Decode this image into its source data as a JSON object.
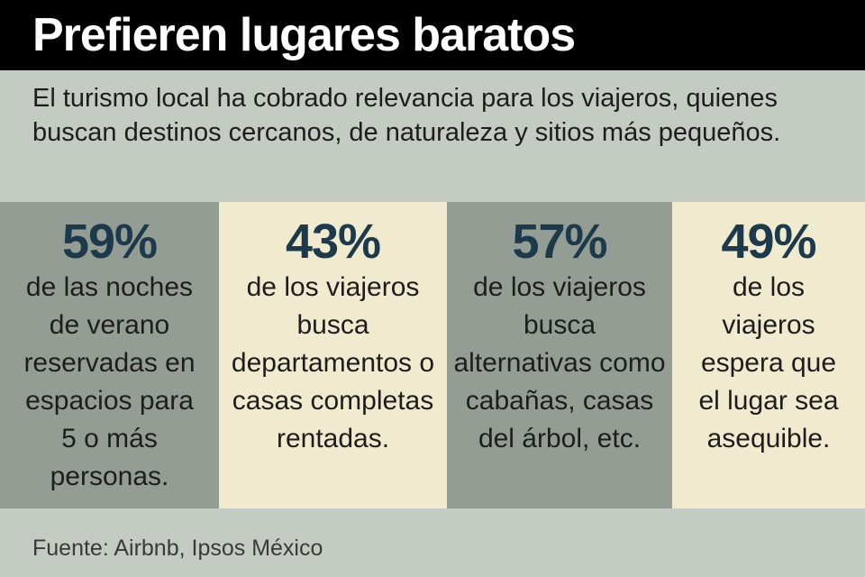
{
  "header": {
    "title": "Prefieren lugares baratos"
  },
  "intro": {
    "text": "El turismo local ha cobrado relevancia para los viajeros, quienes buscan destinos cercanos, de naturaleza y sitios más pequeños."
  },
  "stats": [
    {
      "value": "59%",
      "description": "de las noches de verano reservadas en espacios para 5 o más personas."
    },
    {
      "value": "43%",
      "description": "de los viajeros busca departamentos o casas completas rentadas."
    },
    {
      "value": "57%",
      "description": "de los viajeros busca alternativas como cabañas, casas del árbol, etc."
    },
    {
      "value": "49%",
      "description": "de los viajeros espera que el lugar sea asequible."
    }
  ],
  "footer": {
    "source": "Fuente: Airbnb, Ipsos México"
  },
  "colors": {
    "header_background": "#000000",
    "page_background": "#c4cbc2",
    "panel_dark": "#949d94",
    "panel_light": "#f0ebcf",
    "stat_value": "#1c3a4c"
  }
}
